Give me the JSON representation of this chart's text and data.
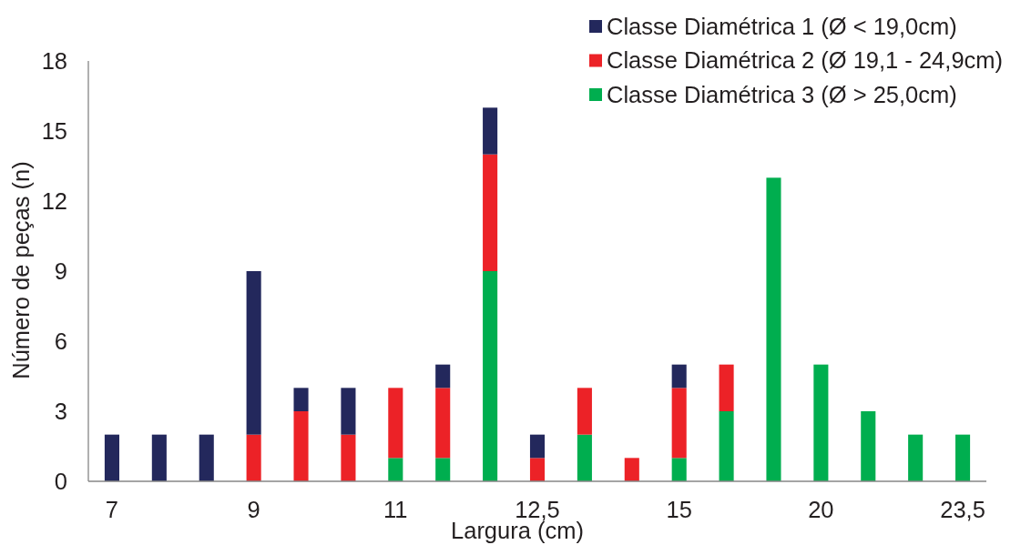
{
  "chart_data": {
    "type": "bar",
    "stacked": true,
    "xlabel": "Largura (cm)",
    "ylabel": "Número de peças (n)",
    "categories": [
      "7",
      null,
      null,
      "9",
      null,
      null,
      "11",
      null,
      null,
      "12,5",
      null,
      null,
      "15",
      null,
      null,
      "20",
      null,
      null,
      "23,5"
    ],
    "series": [
      {
        "name": "Classe Diamétrica 3 (Ø > 25,0cm)",
        "color": "#00ae4f",
        "values": [
          0,
          0,
          0,
          0,
          0,
          0,
          1,
          1,
          9,
          0,
          2,
          0,
          1,
          3,
          13,
          5,
          3,
          2,
          2
        ]
      },
      {
        "name": "Classe Diamétrica 2 (Ø 19,1 - 24,9cm)",
        "color": "#ec2227",
        "values": [
          0,
          0,
          0,
          2,
          3,
          2,
          3,
          3,
          5,
          1,
          2,
          1,
          3,
          2,
          0,
          0,
          0,
          0,
          0
        ]
      },
      {
        "name": "Classe Diamétrica 1 (Ø < 19,0cm)",
        "color": "#23285c",
        "values": [
          2,
          2,
          2,
          7,
          1,
          2,
          0,
          1,
          2,
          1,
          0,
          0,
          1,
          0,
          0,
          0,
          0,
          0,
          0
        ]
      }
    ],
    "ylim": [
      0,
      18
    ],
    "yticks": [
      0,
      3,
      6,
      9,
      12,
      15,
      18
    ],
    "legend": "top right"
  }
}
